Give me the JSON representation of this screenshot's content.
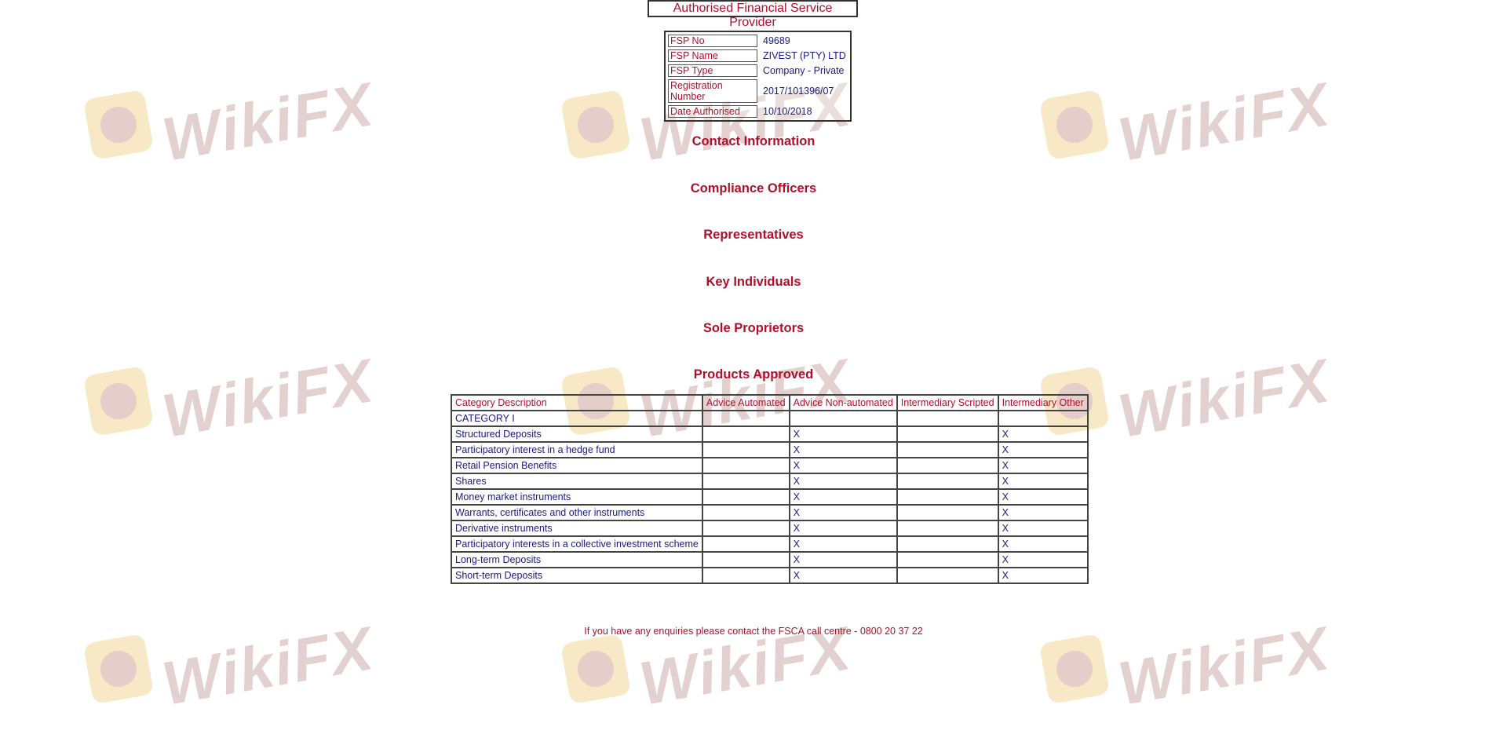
{
  "watermark": "WikiFX",
  "title": "Authorised Financial Service Provider",
  "fsp": [
    {
      "label": "FSP No",
      "value": "49689"
    },
    {
      "label": "FSP Name",
      "value": "ZIVEST (PTY) LTD"
    },
    {
      "label": "FSP Type",
      "value": "Company - Private"
    },
    {
      "label": "Registration Number",
      "value": "2017/101396/07"
    },
    {
      "label": "Date Authorised",
      "value": "10/10/2018"
    }
  ],
  "sections": [
    "Contact Information",
    "Compliance Officers",
    "Representatives",
    "Key Individuals",
    "Sole Proprietors",
    "Products Approved"
  ],
  "products": {
    "headers": [
      "Category Description",
      "Advice Automated",
      "Advice Non-automated",
      "Intermediary Scripted",
      "Intermediary Other"
    ],
    "rows": [
      [
        "CATEGORY I",
        "",
        "",
        "",
        ""
      ],
      [
        "Structured Deposits",
        "",
        "X",
        "",
        "X"
      ],
      [
        "Participatory interest in a hedge fund",
        "",
        "X",
        "",
        "X"
      ],
      [
        "Retail Pension Benefits",
        "",
        "X",
        "",
        "X"
      ],
      [
        "Shares",
        "",
        "X",
        "",
        "X"
      ],
      [
        "Money market instruments",
        "",
        "X",
        "",
        "X"
      ],
      [
        "Warrants, certificates and other instruments",
        "",
        "X",
        "",
        "X"
      ],
      [
        "Derivative instruments",
        "",
        "X",
        "",
        "X"
      ],
      [
        "Participatory interests in a collective investment scheme",
        "",
        "X",
        "",
        "X"
      ],
      [
        "Long-term Deposits",
        "",
        "X",
        "",
        "X"
      ],
      [
        "Short-term Deposits",
        "",
        "X",
        "",
        "X"
      ]
    ]
  },
  "footer": "If you have any enquiries please contact the FSCA call centre - 0800 20 37 22",
  "colors": {
    "label": "#b0102a",
    "value": "#1a1a80"
  }
}
